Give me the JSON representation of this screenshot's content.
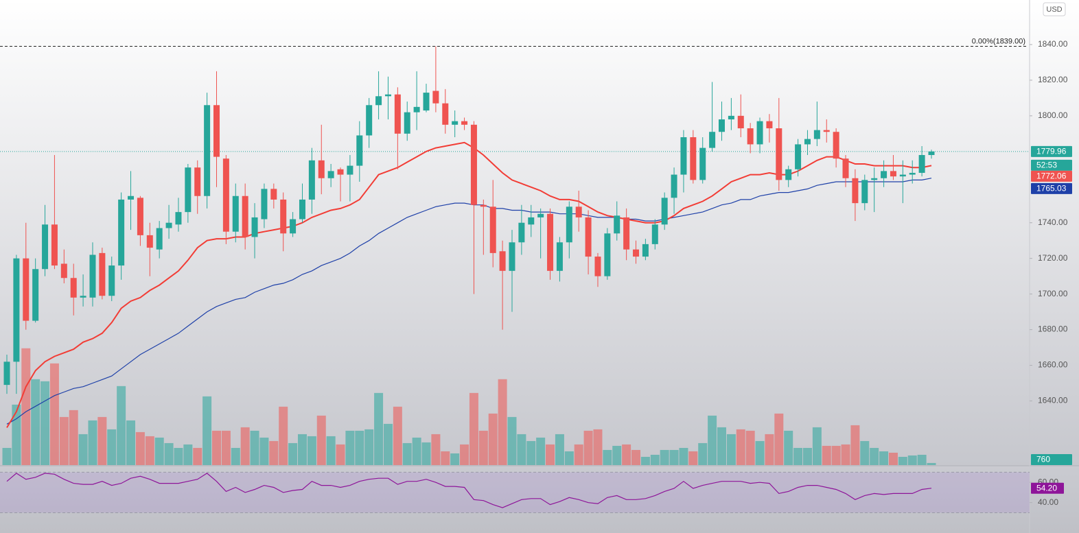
{
  "chart_data": {
    "type": "candlestick",
    "currency": "USD",
    "countdown": "52:53",
    "ylim": [
      1604,
      1865
    ],
    "yticks": [
      {
        "value": 1840,
        "label": "1840.00"
      },
      {
        "value": 1820,
        "label": "1820.00"
      },
      {
        "value": 1800,
        "label": "1800.00"
      },
      {
        "value": 1740,
        "label": "1740.00"
      },
      {
        "value": 1720,
        "label": "1720.00"
      },
      {
        "value": 1700,
        "label": "1700.00"
      },
      {
        "value": 1680,
        "label": "1680.00"
      },
      {
        "value": 1660,
        "label": "1660.00"
      },
      {
        "value": 1640,
        "label": "1640.00"
      }
    ],
    "up_color": "#26a69a",
    "down_color": "#ef5350",
    "open": [
      1649,
      1662,
      1720,
      1685,
      1714,
      1739,
      1717,
      1709,
      1698,
      1698,
      1723,
      1699,
      1716,
      1753,
      1754,
      1733,
      1725,
      1737,
      1739,
      1746,
      1771,
      1755,
      1806,
      1776,
      1735,
      1755,
      1732,
      1742,
      1759,
      1753,
      1734,
      1742,
      1753,
      1775,
      1765,
      1770,
      1767,
      1772,
      1789,
      1806,
      1811,
      1812,
      1790,
      1802,
      1803,
      1814,
      1807,
      1795,
      1797,
      1795,
      1750,
      1749,
      1724,
      1713,
      1729,
      1739,
      1743,
      1745,
      1713,
      1729,
      1749,
      1743,
      1721,
      1710,
      1734,
      1743,
      1725,
      1721,
      1728,
      1739,
      1754,
      1767,
      1788,
      1764,
      1782,
      1791,
      1798,
      1800,
      1793,
      1784,
      1797,
      1793,
      1764,
      1770,
      1784,
      1787,
      1792,
      1791,
      1776,
      1765,
      1751,
      1764,
      1765,
      1769,
      1766,
      1767,
      1768,
      1778
    ],
    "high": [
      1666,
      1722,
      1740,
      1720,
      1750,
      1778,
      1725,
      1717,
      1711,
      1729,
      1726,
      1721,
      1757,
      1769,
      1755,
      1740,
      1741,
      1750,
      1754,
      1773,
      1775,
      1813,
      1825,
      1778,
      1762,
      1762,
      1751,
      1762,
      1762,
      1757,
      1746,
      1762,
      1782,
      1795,
      1773,
      1771,
      1778,
      1797,
      1810,
      1825,
      1822,
      1816,
      1808,
      1825,
      1818,
      1839,
      1815,
      1803,
      1799,
      1797,
      1753,
      1764,
      1730,
      1736,
      1750,
      1750,
      1748,
      1748,
      1732,
      1752,
      1758,
      1747,
      1723,
      1737,
      1752,
      1748,
      1730,
      1731,
      1742,
      1757,
      1771,
      1792,
      1792,
      1788,
      1819,
      1808,
      1810,
      1812,
      1796,
      1799,
      1801,
      1810,
      1772,
      1787,
      1792,
      1808,
      1798,
      1793,
      1778,
      1770,
      1767,
      1771,
      1775,
      1778,
      1775,
      1775,
      1783,
      1781
    ],
    "low": [
      1644,
      1644,
      1680,
      1684,
      1710,
      1714,
      1706,
      1688,
      1693,
      1693,
      1697,
      1696,
      1708,
      1736,
      1727,
      1710,
      1720,
      1731,
      1735,
      1740,
      1745,
      1748,
      1760,
      1728,
      1729,
      1725,
      1720,
      1737,
      1748,
      1724,
      1732,
      1740,
      1745,
      1756,
      1760,
      1752,
      1752,
      1763,
      1782,
      1798,
      1798,
      1770,
      1786,
      1792,
      1802,
      1802,
      1790,
      1788,
      1792,
      1700,
      1722,
      1715,
      1680,
      1690,
      1722,
      1732,
      1720,
      1708,
      1707,
      1720,
      1735,
      1711,
      1704,
      1708,
      1730,
      1719,
      1717,
      1719,
      1725,
      1736,
      1745,
      1757,
      1762,
      1762,
      1780,
      1786,
      1792,
      1788,
      1779,
      1779,
      1785,
      1758,
      1760,
      1766,
      1778,
      1783,
      1785,
      1771,
      1760,
      1741,
      1747,
      1746,
      1760,
      1764,
      1751,
      1762,
      1766,
      1776
    ],
    "close": [
      1662,
      1720,
      1685,
      1714,
      1739,
      1716,
      1709,
      1698,
      1699,
      1722,
      1699,
      1716,
      1753,
      1755,
      1733,
      1726,
      1737,
      1740,
      1746,
      1771,
      1755,
      1806,
      1777,
      1735,
      1755,
      1732,
      1743,
      1759,
      1753,
      1734,
      1742,
      1753,
      1775,
      1765,
      1769,
      1767,
      1772,
      1789,
      1806,
      1811,
      1812,
      1790,
      1802,
      1805,
      1813,
      1807,
      1795,
      1797,
      1795,
      1750,
      1749,
      1723,
      1713,
      1729,
      1740,
      1743,
      1745,
      1713,
      1729,
      1749,
      1743,
      1721,
      1710,
      1734,
      1744,
      1725,
      1721,
      1728,
      1739,
      1754,
      1767,
      1788,
      1764,
      1782,
      1791,
      1798,
      1800,
      1793,
      1784,
      1797,
      1793,
      1764,
      1770,
      1784,
      1787,
      1792,
      1791,
      1776,
      1765,
      1751,
      1764,
      1765,
      1769,
      1766,
      1767,
      1768,
      1778,
      1779.96
    ],
    "volume": {
      "ylim": [
        0,
        169250
      ],
      "values": [
        6250,
        22000,
        42500,
        31250,
        30500,
        37000,
        17500,
        20000,
        11250,
        16250,
        17500,
        13000,
        28750,
        16250,
        12000,
        10500,
        10000,
        8000,
        6250,
        7500,
        6250,
        25000,
        12500,
        12500,
        6250,
        13750,
        12500,
        10000,
        8750,
        21250,
        8000,
        11250,
        10500,
        18000,
        10500,
        7500,
        12500,
        12500,
        13000,
        26250,
        15000,
        21250,
        8000,
        10000,
        8250,
        11250,
        5000,
        4250,
        7500,
        26250,
        12500,
        18750,
        31250,
        17500,
        11250,
        8750,
        10000,
        7500,
        11250,
        5000,
        7500,
        12500,
        13000,
        5500,
        7000,
        7500,
        5500,
        3000,
        3750,
        5500,
        5500,
        6250,
        5000,
        8000,
        18000,
        13750,
        11250,
        13000,
        12500,
        8750,
        11250,
        18750,
        12500,
        6250,
        6250,
        13750,
        7000,
        7000,
        7500,
        14500,
        8750,
        6250,
        5000,
        4500,
        3000,
        3500,
        3750,
        760
      ]
    },
    "ema_fast": {
      "color": "#f23c35",
      "values": [
        1625,
        1634,
        1648,
        1657,
        1662,
        1665,
        1667,
        1669,
        1673,
        1675,
        1678,
        1684,
        1692,
        1696,
        1698,
        1702,
        1705,
        1709,
        1713,
        1719,
        1726,
        1730,
        1731,
        1731,
        1732,
        1732,
        1734,
        1735,
        1736,
        1737,
        1738,
        1740,
        1743,
        1745,
        1747,
        1748,
        1750,
        1753,
        1760,
        1767,
        1769,
        1771,
        1774,
        1777,
        1780,
        1782,
        1783,
        1784,
        1785,
        1782,
        1778,
        1773,
        1768,
        1764,
        1762,
        1760,
        1758,
        1755,
        1753,
        1753,
        1752,
        1749,
        1746,
        1744,
        1743,
        1742,
        1741,
        1740,
        1740,
        1741,
        1744,
        1748,
        1750,
        1752,
        1755,
        1759,
        1763,
        1765,
        1767,
        1767,
        1768,
        1767,
        1767,
        1769,
        1772,
        1775,
        1777,
        1777,
        1775,
        1773,
        1773,
        1772,
        1772,
        1772,
        1772,
        1771,
        1771,
        1772.06
      ]
    },
    "ema_slow": {
      "color": "#1e40a8",
      "values": [
        1627,
        1630,
        1634,
        1637,
        1640,
        1643,
        1645,
        1647,
        1648,
        1650,
        1652,
        1654,
        1658,
        1662,
        1666,
        1669,
        1672,
        1675,
        1678,
        1682,
        1686,
        1690,
        1693,
        1695,
        1697,
        1698,
        1701,
        1703,
        1705,
        1706,
        1708,
        1711,
        1713,
        1716,
        1718,
        1720,
        1723,
        1727,
        1730,
        1734,
        1737,
        1740,
        1743,
        1745,
        1747,
        1749,
        1750,
        1751,
        1751,
        1750,
        1750,
        1748,
        1748,
        1747,
        1747,
        1746,
        1746,
        1746,
        1745,
        1745,
        1745,
        1744,
        1743,
        1743,
        1743,
        1742,
        1742,
        1741,
        1741,
        1742,
        1743,
        1744,
        1745,
        1746,
        1748,
        1750,
        1751,
        1753,
        1753,
        1755,
        1756,
        1757,
        1757,
        1758,
        1759,
        1761,
        1762,
        1763,
        1763,
        1763,
        1763,
        1763,
        1763,
        1763,
        1763,
        1764,
        1764,
        1765.03
      ]
    },
    "fib": {
      "level": 1839,
      "label": "0.00%(1839.00)"
    },
    "rsi": {
      "color": "#8e1599",
      "ylim": [
        10,
        75
      ],
      "yticks": [
        {
          "value": 60,
          "label": "60.00"
        },
        {
          "value": 40,
          "label": "40.00"
        }
      ],
      "band": [
        30,
        70
      ],
      "value_label": "54.20",
      "values": [
        61,
        69,
        63,
        65,
        69,
        68,
        63,
        59,
        58,
        58,
        61,
        57,
        59,
        64,
        66,
        63,
        59,
        59,
        59,
        61,
        63,
        69,
        61,
        51,
        55,
        50,
        53,
        57,
        55,
        50,
        52,
        53,
        61,
        57,
        57,
        55,
        57,
        61,
        63,
        64,
        64,
        58,
        61,
        61,
        63,
        60,
        56,
        56,
        55,
        43,
        42,
        38,
        35,
        39,
        43,
        44,
        44,
        38,
        41,
        45,
        43,
        40,
        39,
        45,
        47,
        43,
        43,
        44,
        47,
        51,
        54,
        61,
        54,
        57,
        59,
        61,
        61,
        61,
        59,
        60,
        59,
        49,
        51,
        55,
        57,
        57,
        55,
        53,
        49,
        43,
        47,
        49,
        48,
        49,
        49,
        49,
        53,
        54.2
      ]
    }
  }
}
